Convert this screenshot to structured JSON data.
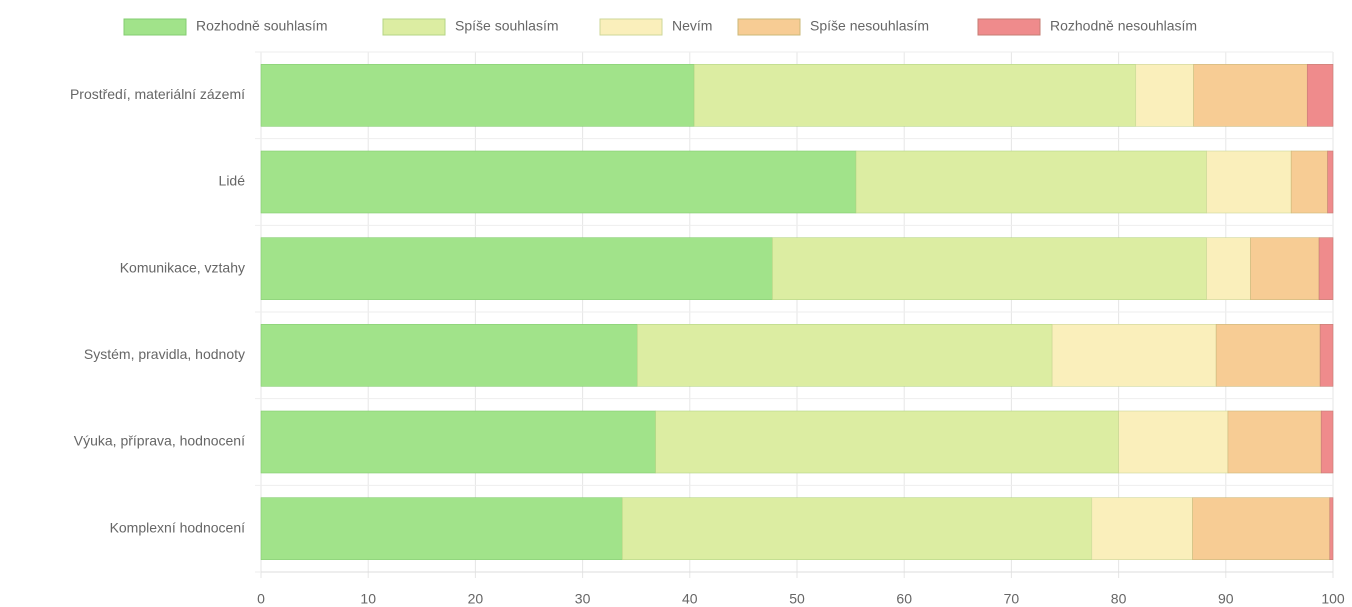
{
  "chart_data": {
    "type": "stacked_bar_horizontal",
    "categories": [
      "Prostředí, materiální zázemí",
      "Lidé",
      "Komunikace, vztahy",
      "Systém, pravidla, hodnoty",
      "Výuka, příprava, hodnocení",
      "Komplexní hodnocení"
    ],
    "series": [
      {
        "name": "Rozhodně souhlasím",
        "color": "#a1e38a",
        "values": [
          40.4,
          55.5,
          47.7,
          35.1,
          36.8,
          33.7
        ]
      },
      {
        "name": "Spíše souhlasím",
        "color": "#dcedA2",
        "values": [
          41.2,
          32.7,
          40.5,
          38.7,
          43.2,
          43.8
        ]
      },
      {
        "name": "Nevím",
        "color": "#faefbb",
        "values": [
          5.4,
          7.9,
          4.1,
          15.3,
          10.2,
          9.4
        ]
      },
      {
        "name": "Spíše nesouhlasím",
        "color": "#f7cc94",
        "values": [
          10.6,
          3.4,
          6.4,
          9.7,
          8.7,
          12.8
        ]
      },
      {
        "name": "Rozhodně nesouhlasím",
        "color": "#ef8b8c",
        "values": [
          2.4,
          0.5,
          1.3,
          1.2,
          1.1,
          0.3
        ]
      }
    ],
    "xlim": [
      0,
      100
    ],
    "xticks": [
      0,
      10,
      20,
      30,
      40,
      50,
      60,
      70,
      80,
      90,
      100
    ],
    "grid": true,
    "legend": "top"
  }
}
